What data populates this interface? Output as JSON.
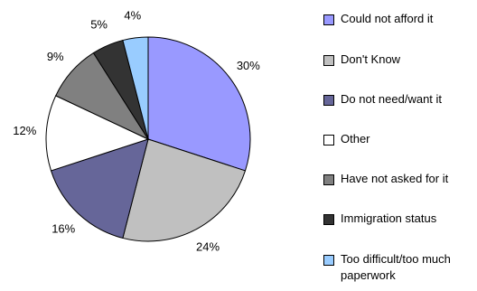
{
  "chart_data": {
    "type": "pie",
    "categories": [
      "Could not afford it",
      "Don't Know",
      "Do not need/want it",
      "Other",
      "Have not asked for it",
      "Immigration status",
      "Too difficult/too much paperwork"
    ],
    "values": [
      30,
      24,
      16,
      12,
      9,
      5,
      4
    ],
    "value_labels": [
      "30%",
      "24%",
      "16%",
      "12%",
      "9%",
      "5%",
      "4%"
    ],
    "colors": [
      "#9999ff",
      "#c0c0c0",
      "#666699",
      "#ffffff",
      "#808080",
      "#333333",
      "#99ccff"
    ],
    "legend": "right"
  }
}
